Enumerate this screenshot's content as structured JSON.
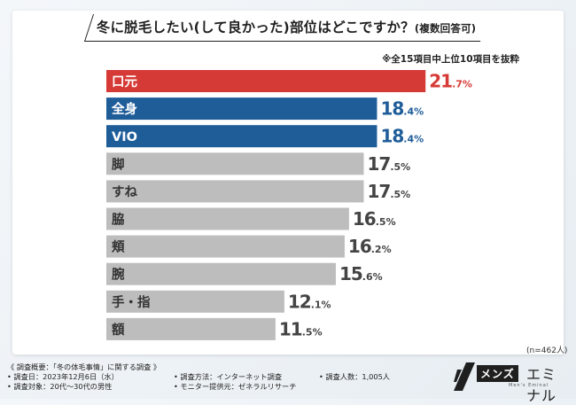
{
  "chart_data": {
    "type": "bar",
    "orientation": "horizontal",
    "title": "冬に脱毛したい(して良かった)部位はどこですか？",
    "subtitle": "(複数回答可)",
    "note": "※全15項目中上位10項目を抜粋",
    "sample_size": "(n=462人)",
    "unit": "%",
    "xlim": [
      0,
      25
    ],
    "categories": [
      "口元",
      "全身",
      "VIO",
      "脚",
      "すね",
      "脇",
      "頬",
      "腕",
      "手・指",
      "額"
    ],
    "values": [
      21.7,
      18.4,
      18.4,
      17.5,
      17.5,
      16.5,
      16.2,
      15.6,
      12.1,
      11.5
    ],
    "value_labels": [
      {
        "int": "21",
        "dec": ".7%"
      },
      {
        "int": "18",
        "dec": ".4%"
      },
      {
        "int": "18",
        "dec": ".4%"
      },
      {
        "int": "17",
        "dec": ".5%"
      },
      {
        "int": "17",
        "dec": ".5%"
      },
      {
        "int": "16",
        "dec": ".5%"
      },
      {
        "int": "16",
        "dec": ".2%"
      },
      {
        "int": "15",
        "dec": ".6%"
      },
      {
        "int": "12",
        "dec": ".1%"
      },
      {
        "int": "11",
        "dec": ".5%"
      }
    ],
    "colors": [
      "#d63a36",
      "#1f5d99",
      "#1f5d99",
      "#bdbdbd",
      "#bdbdbd",
      "#bdbdbd",
      "#bdbdbd",
      "#bdbdbd",
      "#bdbdbd",
      "#bdbdbd"
    ],
    "label_colors": [
      "#ffffff",
      "#ffffff",
      "#ffffff",
      "#333333",
      "#333333",
      "#333333",
      "#333333",
      "#333333",
      "#333333",
      "#333333"
    ],
    "value_colors": [
      "#d63a36",
      "#1f5d99",
      "#1f5d99",
      "#444444",
      "#444444",
      "#444444",
      "#444444",
      "#444444",
      "#444444",
      "#444444"
    ]
  },
  "footer": {
    "heading": "《 調査概要：「冬の体毛事情」に関する調査 》",
    "date": "• 調査日：2023年12月6日（水）",
    "target": "• 調査対象：20代～30代の男性",
    "method": "• 調査方法：インターネット調査",
    "provider": "• モニター提供元：ゼネラルリサーチ",
    "count": "• 調査人数：1,005人"
  },
  "logo": {
    "box_text": "メンズ",
    "text": "エミナル",
    "sub": "Men's Eminal"
  }
}
